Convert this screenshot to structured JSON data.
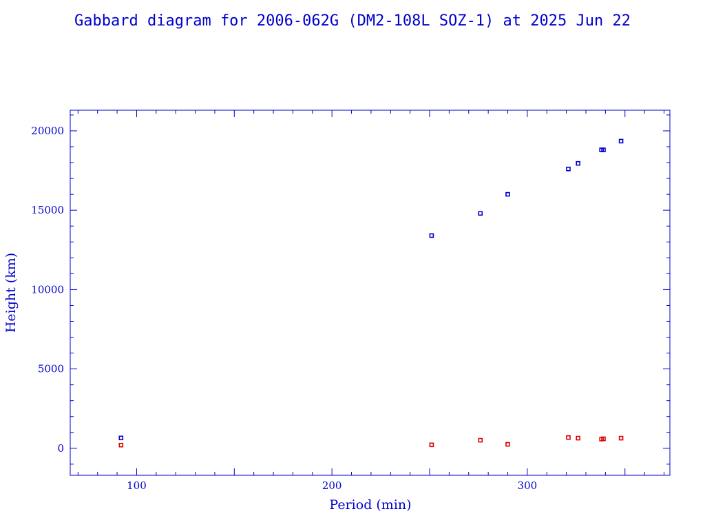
{
  "chart_data": {
    "type": "scatter",
    "title": "Gabbard diagram for 2006-062G (DM2-108L SOZ-1) at 2025 Jun 22",
    "xlabel": "Period (min)",
    "ylabel": "Height (km)",
    "xlim": [
      66,
      373
    ],
    "ylim": [
      -1700,
      21300
    ],
    "x_major_ticks": [
      100,
      200,
      300
    ],
    "x_tick_labels": [
      "100",
      "200",
      "300"
    ],
    "y_major_ticks": [
      0,
      5000,
      10000,
      15000,
      20000
    ],
    "y_tick_labels": [
      "0",
      "5000",
      "10000",
      "15000",
      "20000"
    ],
    "grid": false,
    "series": [
      {
        "role": "apogee",
        "color": "#0000cc",
        "points": [
          {
            "x": 92,
            "y": 650
          },
          {
            "x": 251,
            "y": 13400
          },
          {
            "x": 276,
            "y": 14800
          },
          {
            "x": 290,
            "y": 16000
          },
          {
            "x": 321,
            "y": 17600
          },
          {
            "x": 326,
            "y": 17950
          },
          {
            "x": 338,
            "y": 18800
          },
          {
            "x": 339,
            "y": 18800
          },
          {
            "x": 348,
            "y": 19350
          }
        ]
      },
      {
        "role": "perigee",
        "color": "#dd0000",
        "points": [
          {
            "x": 92,
            "y": 200
          },
          {
            "x": 251,
            "y": 220
          },
          {
            "x": 276,
            "y": 510
          },
          {
            "x": 290,
            "y": 250
          },
          {
            "x": 321,
            "y": 680
          },
          {
            "x": 326,
            "y": 640
          },
          {
            "x": 338,
            "y": 580
          },
          {
            "x": 339,
            "y": 600
          },
          {
            "x": 348,
            "y": 640
          }
        ]
      }
    ]
  }
}
